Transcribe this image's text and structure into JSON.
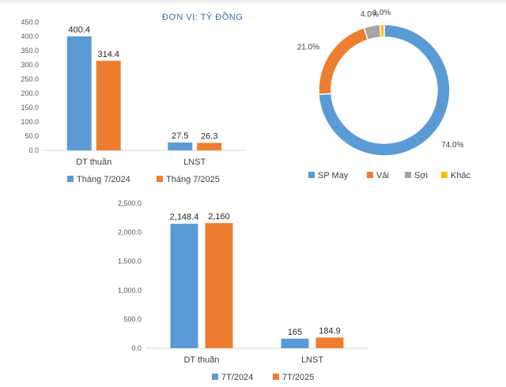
{
  "unit_text": "ĐƠN VỊ: TỶ ĐỒNG",
  "colors": {
    "blue": "#5B9BD5",
    "orange": "#ED7D31",
    "gray": "#A5A5A5",
    "yellow": "#FFC000"
  },
  "chart_data": [
    {
      "type": "bar",
      "categories": [
        "DT thuần",
        "LNST"
      ],
      "series": [
        {
          "name": "Tháng 7/2024",
          "values": [
            400.4,
            27.5
          ],
          "labels": [
            "400.4",
            "27.5"
          ]
        },
        {
          "name": "Tháng 7/2025",
          "values": [
            314.4,
            26.3
          ],
          "labels": [
            "314.4",
            "26.3"
          ]
        }
      ],
      "ylim": [
        0,
        450
      ],
      "yticks": [
        "0.0",
        "50.0",
        "100.0",
        "150.0",
        "200.0",
        "250.0",
        "300.0",
        "350.0",
        "400.0",
        "450.0"
      ],
      "legend": "bottom"
    },
    {
      "type": "pie",
      "categories": [
        "SP May",
        "Vải",
        "Sợi",
        "Khác"
      ],
      "values": [
        74.0,
        21.0,
        4.0,
        1.0
      ],
      "labels": [
        "74.0%",
        "21.0%",
        "4.0%",
        "1.0%"
      ],
      "legend": "bottom"
    },
    {
      "type": "bar",
      "categories": [
        "DT thuần",
        "LNST"
      ],
      "series": [
        {
          "name": "7T/2024",
          "values": [
            2148.4,
            165
          ],
          "labels": [
            "2,148.4",
            "165"
          ]
        },
        {
          "name": "7T/2025",
          "values": [
            2160,
            184.9
          ],
          "labels": [
            "2,160",
            "184.9"
          ]
        }
      ],
      "ylim": [
        0,
        2500
      ],
      "yticks": [
        "0.0",
        "500.0",
        "1,000.0",
        "1,500.0",
        "2,000.0",
        "2,500.0"
      ],
      "legend": "bottom"
    }
  ]
}
